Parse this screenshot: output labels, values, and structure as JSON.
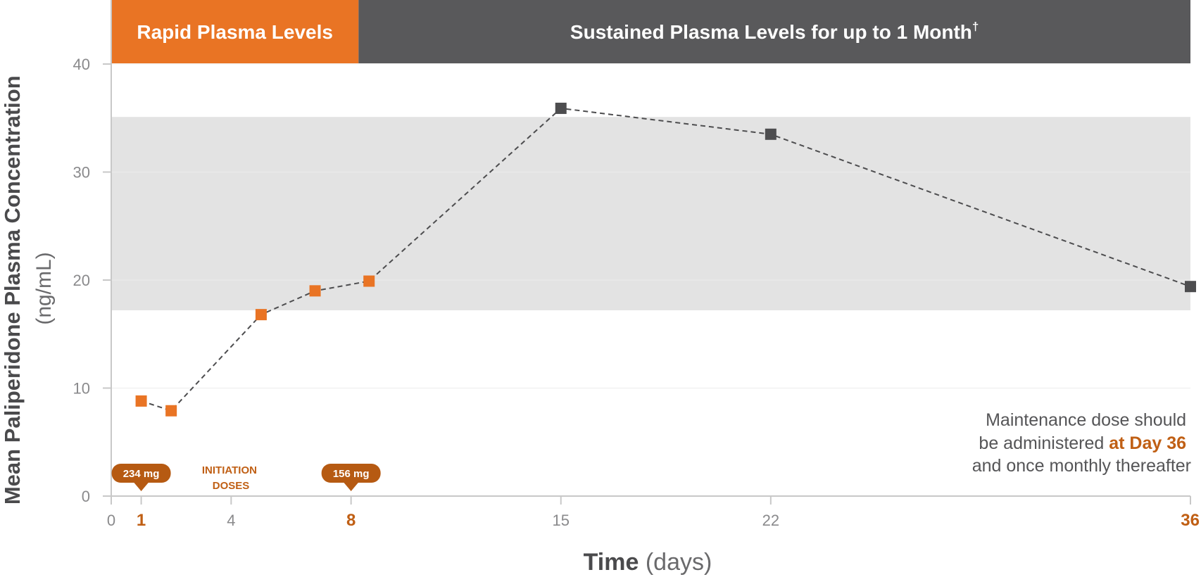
{
  "chart_data": {
    "type": "line",
    "x": [
      1,
      2,
      5,
      6.8,
      8.6,
      15,
      22,
      36
    ],
    "series": [
      {
        "values": [
          8.8,
          7.9,
          16.8,
          19.0,
          19.9,
          35.9,
          33.5,
          19.4
        ],
        "point_colors": [
          "#e97424",
          "#e97424",
          "#e97424",
          "#e97424",
          "#e97424",
          "#4d4d4f",
          "#4d4d4f",
          "#4d4d4f"
        ]
      }
    ],
    "title": "",
    "ylabel_main": "Mean Paliperidone Plasma Concentration",
    "ylabel_unit": "(ng/mL)",
    "xlabel_main": "Time",
    "xlabel_unit": " (days)",
    "xlim": [
      0,
      36
    ],
    "ylim": [
      0,
      40
    ],
    "yticks": [
      0,
      10,
      20,
      30,
      40
    ],
    "xticks": [
      {
        "value": 0,
        "label": "0",
        "highlight": false
      },
      {
        "value": 1,
        "label": "1",
        "highlight": true
      },
      {
        "value": 4,
        "label": "4",
        "highlight": false
      },
      {
        "value": 8,
        "label": "8",
        "highlight": true
      },
      {
        "value": 15,
        "label": "15",
        "highlight": false
      },
      {
        "value": 22,
        "label": "22",
        "highlight": false
      },
      {
        "value": 36,
        "label": "36",
        "highlight": true
      }
    ],
    "shaded_range_y": [
      17.2,
      35.1
    ],
    "phase_bands": [
      {
        "label": "Rapid Plasma Levels",
        "sup": "",
        "x_from": 0,
        "x_to": 8.25,
        "color": "#e97424"
      },
      {
        "label": "Sustained Plasma Levels for up to 1 Month",
        "sup": "†",
        "x_from": 8.25,
        "x_to": 36,
        "color": "#59595b"
      }
    ],
    "dose_markers": [
      {
        "label": "234 mg",
        "x": 1
      },
      {
        "label": "156 mg",
        "x": 8
      }
    ],
    "initiation_label": [
      "INITIATION",
      "DOSES"
    ],
    "note": {
      "line1": "Maintenance dose should",
      "line2_pre": "be administered ",
      "line2_hl": "at Day 36",
      "line3": "and once monthly thereafter"
    },
    "colors": {
      "orange": "#e97424",
      "dark_orange": "#b65a12",
      "dark_gray": "#4d4d4f",
      "band_gray": "#e3e3e3",
      "axis": "#c8c8c8"
    }
  }
}
